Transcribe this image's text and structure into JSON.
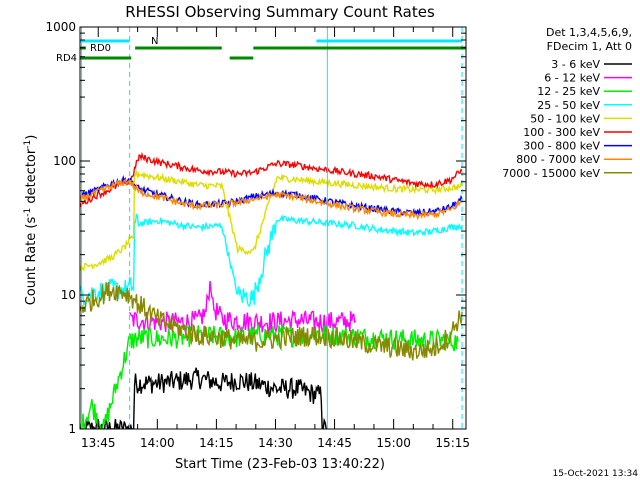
{
  "chart_data": {
    "type": "line",
    "title": "RHESSI Observing Summary Count Rates",
    "xlabel": "Start Time (23-Feb-03 13:40:22)",
    "ylabel_pre": "Count Rate (s",
    "ylabel_sup1": "-1",
    "ylabel_mid": " detector",
    "ylabel_sup2": "-1",
    "ylabel_post": ")",
    "yscale": "log",
    "ylim": [
      1,
      1000
    ],
    "xlim_min": [
      0,
      98
    ],
    "x_unit": "minutes after 13:40:22",
    "x_tick_labels": [
      "13:45",
      "14:00",
      "14:15",
      "14:30",
      "14:45",
      "15:00",
      "15:15"
    ],
    "x_ticks_min": [
      4.63,
      19.63,
      34.63,
      49.63,
      64.63,
      79.63,
      94.63
    ],
    "y_tick_labels": [
      "1",
      "10",
      "100",
      "1000"
    ],
    "y_ticks": [
      1,
      10,
      100,
      1000
    ],
    "legend": {
      "header1": "Det 1,3,4,5,6,9,",
      "header2": "FDecim 1, Att 0",
      "placement": "top-right outside"
    },
    "flags": [
      {
        "label": "N",
        "color": "#00e8ff",
        "segments": [
          [
            0,
            12.6
          ],
          [
            60,
            97
          ]
        ]
      },
      {
        "label": "RD0",
        "color": "#008800",
        "segments": [
          [
            0,
            1.5
          ],
          [
            14,
            36
          ],
          [
            44,
            98
          ]
        ]
      },
      {
        "label": "RD4",
        "color": "#008800",
        "segments": [
          [
            0,
            13.0
          ],
          [
            38,
            44
          ]
        ]
      }
    ],
    "vertical_markers": [
      {
        "style": "solid",
        "color": "#00e8ff",
        "x": 0.4
      },
      {
        "style": "dashed",
        "color": "#00e8ff",
        "x": 12.6
      },
      {
        "style": "solid",
        "color": "#00e8ff",
        "x": 62.8
      },
      {
        "style": "dashed",
        "color": "#00e8ff",
        "x": 97.0
      }
    ],
    "series": [
      {
        "name": "3 - 6 keV",
        "color": "#000000",
        "x": [
          0,
          3,
          6,
          9,
          12,
          12.6,
          15,
          20,
          26,
          30,
          36,
          40,
          44,
          50,
          55,
          60,
          62.8
        ],
        "y": [
          1,
          1,
          1,
          1,
          1,
          1,
          2.2,
          2.2,
          2.3,
          2.4,
          2.2,
          2.3,
          2.2,
          2.0,
          2.0,
          1.8,
          1
        ],
        "gaps": [
          [
            62.8,
            98
          ]
        ]
      },
      {
        "name": "6 - 12 keV",
        "color": "#ff00ff",
        "x": [
          12.6,
          15,
          20,
          25,
          30,
          32,
          33,
          34,
          36,
          40,
          44,
          50,
          55,
          60,
          65,
          70
        ],
        "y": [
          6.5,
          6.5,
          6.3,
          6.2,
          6.4,
          7.5,
          12.5,
          8,
          6.6,
          6.4,
          6.3,
          6.3,
          6.5,
          6.3,
          6.3,
          6.4
        ]
      },
      {
        "name": "12 - 25 keV",
        "color": "#00ee00",
        "x": [
          0,
          3,
          6,
          12.6,
          15,
          20,
          26,
          30,
          36,
          40,
          44,
          50,
          55,
          60,
          65,
          70,
          75,
          80,
          87,
          92,
          96
        ],
        "y": [
          1,
          1.5,
          1,
          4.5,
          4.8,
          4.7,
          4.8,
          5.0,
          4.9,
          4.8,
          5.0,
          5.0,
          4.9,
          5.2,
          5.0,
          4.9,
          4.8,
          4.7,
          4.6,
          4.6,
          4.5
        ]
      },
      {
        "name": "25 - 50 keV",
        "color": "#00ffff",
        "x": [
          0,
          4,
          8,
          11.5,
          12.6,
          15,
          20,
          26,
          30,
          36,
          40,
          44,
          50,
          55,
          60,
          65,
          70,
          75,
          80,
          85,
          90,
          94,
          97
        ],
        "y": [
          10,
          10.5,
          11,
          11,
          11.5,
          34,
          36,
          33,
          32,
          33,
          10,
          9.5,
          37,
          36,
          35,
          34,
          33,
          31,
          30,
          29,
          30,
          32,
          33
        ]
      },
      {
        "name": "50 - 100 keV",
        "color": "#dddd00",
        "x": [
          0,
          4,
          8,
          11.5,
          12.6,
          15,
          20,
          26,
          30,
          36,
          40,
          44,
          50,
          55,
          60,
          65,
          70,
          75,
          80,
          85,
          90,
          94,
          97
        ],
        "y": [
          16,
          17,
          19,
          23,
          26,
          80,
          75,
          70,
          66,
          65,
          22,
          21,
          75,
          73,
          70,
          68,
          66,
          64,
          62,
          61,
          61,
          63,
          65
        ]
      },
      {
        "name": "100 - 300 keV",
        "color": "#ff0000",
        "x": [
          0,
          4,
          8,
          11.5,
          12.6,
          15,
          20,
          26,
          30,
          36,
          40,
          44,
          50,
          55,
          60,
          65,
          70,
          75,
          80,
          85,
          90,
          94,
          97
        ],
        "y": [
          47,
          55,
          62,
          70,
          68,
          108,
          98,
          90,
          85,
          83,
          80,
          82,
          96,
          93,
          88,
          84,
          80,
          77,
          72,
          68,
          67,
          72,
          85
        ]
      },
      {
        "name": "300 - 800 keV",
        "color": "#0000ff",
        "x": [
          0,
          4,
          8,
          11.5,
          12.6,
          15,
          20,
          26,
          30,
          36,
          40,
          44,
          50,
          55,
          60,
          65,
          70,
          75,
          80,
          85,
          90,
          94,
          97
        ],
        "y": [
          55,
          60,
          68,
          72,
          72,
          62,
          56,
          50,
          47,
          48,
          50,
          54,
          58,
          56,
          52,
          49,
          46,
          44,
          42,
          41,
          42,
          45,
          52
        ]
      },
      {
        "name": "800 - 7000 keV",
        "color": "#ff8800",
        "x": [
          0,
          4,
          8,
          11.5,
          12.6,
          15,
          20,
          26,
          30,
          36,
          40,
          44,
          50,
          55,
          60,
          65,
          70,
          75,
          80,
          85,
          90,
          94,
          97
        ],
        "y": [
          52,
          58,
          65,
          70,
          70,
          59,
          54,
          48,
          46,
          47,
          49,
          52,
          56,
          54,
          50,
          47,
          44,
          42,
          40,
          39,
          40,
          43,
          50
        ]
      },
      {
        "name": "7000 - 15000 keV",
        "color": "#888800",
        "x": [
          0,
          4,
          8,
          11.5,
          12.6,
          15,
          20,
          26,
          30,
          36,
          40,
          44,
          50,
          55,
          60,
          65,
          70,
          75,
          80,
          85,
          90,
          94,
          97
        ],
        "y": [
          8,
          9.5,
          11,
          10.5,
          10,
          8.5,
          6.5,
          5.5,
          5.0,
          4.8,
          4.6,
          4.5,
          4.7,
          4.9,
          5.0,
          4.8,
          4.5,
          4.2,
          4.0,
          3.8,
          4.0,
          5.0,
          7.5
        ]
      }
    ],
    "footer_timestamp": "15-Oct-2021 13:34"
  }
}
